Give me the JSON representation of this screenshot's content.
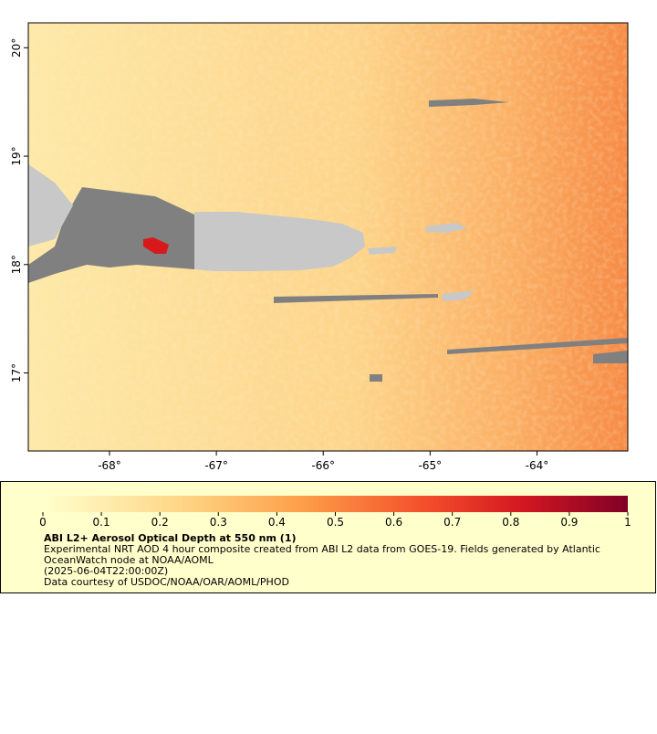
{
  "map": {
    "lon_range": [
      -68.76,
      -63.15
    ],
    "lat_range": [
      20.23,
      16.28
    ],
    "lon_ticks": [
      {
        "value": -68,
        "label": "-68°"
      },
      {
        "value": -67,
        "label": "-67°"
      },
      {
        "value": -66,
        "label": "-66°"
      },
      {
        "value": -65,
        "label": "-65°"
      },
      {
        "value": -64,
        "label": "-64°"
      }
    ],
    "lat_ticks": [
      {
        "value": 20,
        "label": "20°"
      },
      {
        "value": 19,
        "label": "19°"
      },
      {
        "value": 18,
        "label": "18°"
      },
      {
        "value": 17,
        "label": "17°"
      }
    ]
  },
  "colorbar": {
    "range": [
      0,
      1
    ],
    "ticks": [
      0,
      0.1,
      0.2,
      0.3,
      0.4,
      0.5,
      0.6,
      0.7,
      0.8,
      0.9,
      1
    ]
  },
  "caption": {
    "title": "ABI L2+ Aerosol Optical Depth at 550 nm (1)",
    "description": "Experimental NRT AOD 4 hour composite created from ABI L2 data from GOES-19. Fields generated by Atlantic OceanWatch node at NOAA/AOML",
    "time": "(2025-06-04T22:00:00Z)",
    "credit": "Data courtesy of USDOC/NOAA/OAR/AOML/PHOD"
  }
}
